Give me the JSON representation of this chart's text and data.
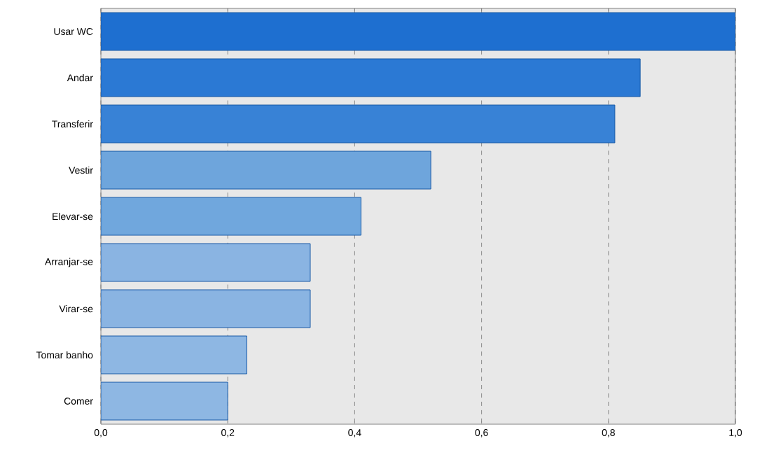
{
  "chart_data": {
    "type": "bar",
    "orientation": "horizontal",
    "categories": [
      "Usar WC",
      "Andar",
      "Transferir",
      "Vestir",
      "Elevar-se",
      "Arranjar-se",
      "Virar-se",
      "Tomar banho",
      "Comer"
    ],
    "values": [
      1.0,
      0.85,
      0.81,
      0.52,
      0.41,
      0.33,
      0.33,
      0.23,
      0.2
    ],
    "colors": [
      "#1e6fd0",
      "#2b79d4",
      "#3882d6",
      "#6ea5dc",
      "#70a7dd",
      "#8ab4e2",
      "#8ab4e2",
      "#8eb7e3",
      "#8eb7e3"
    ],
    "xlim": [
      0,
      1
    ],
    "xticks": [
      {
        "value": 0,
        "label": "0,0"
      },
      {
        "value": 0.2,
        "label": "0,2"
      },
      {
        "value": 0.4,
        "label": "0,4"
      },
      {
        "value": 0.6,
        "label": "0,6"
      },
      {
        "value": 0.8,
        "label": "0,8"
      },
      {
        "value": 1,
        "label": "1,0"
      }
    ],
    "grid": "x"
  }
}
